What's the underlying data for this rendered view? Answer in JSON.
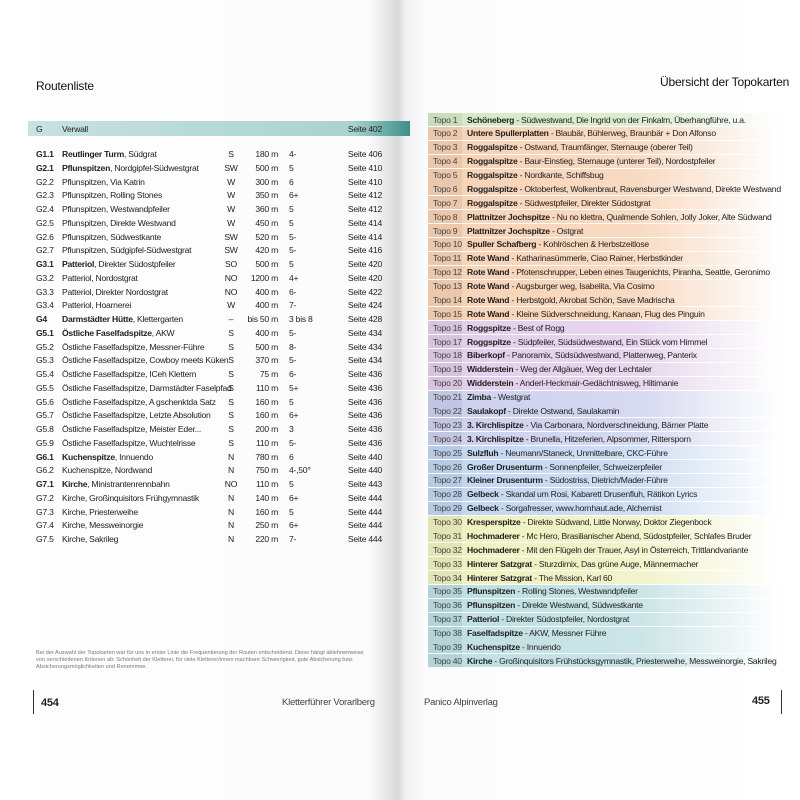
{
  "left": {
    "title": "Routenliste",
    "header": {
      "id": "G",
      "name": "Verwall",
      "page": "Seite 402"
    },
    "rows": [
      {
        "id": "G1.1",
        "strong": "Reutlinger Turm",
        "name": ", Südgrat",
        "dir": "S",
        "length": "180 m",
        "grade": "4-",
        "page": "Seite 406"
      },
      {
        "id": "G2.1",
        "strong": "Pflunspitzen",
        "name": ", Nordgipfel-Südwestgrat",
        "dir": "SW",
        "length": "500 m",
        "grade": "5",
        "page": "Seite 410"
      },
      {
        "id": "G2.2",
        "name": "Pflunspitzen, Via Katrin",
        "dir": "W",
        "length": "300 m",
        "grade": "6",
        "page": "Seite 410"
      },
      {
        "id": "G2.3",
        "name": "Pflunspitzen, Rolling Stones",
        "dir": "W",
        "length": "350 m",
        "grade": "6+",
        "page": "Seite 412"
      },
      {
        "id": "G2.4",
        "name": "Pflunspitzen, Westwandpfeiler",
        "dir": "W",
        "length": "360 m",
        "grade": "5",
        "page": "Seite 412"
      },
      {
        "id": "G2.5",
        "name": "Pflunspitzen, Direkte Westwand",
        "dir": "W",
        "length": "450 m",
        "grade": "5",
        "page": "Seite 414"
      },
      {
        "id": "G2.6",
        "name": "Pflunspitzen, Südwestkante",
        "dir": "SW",
        "length": "520 m",
        "grade": "5-",
        "page": "Seite 414"
      },
      {
        "id": "G2.7",
        "name": "Pflunspitzen, Südgipfel-Südwestgrat",
        "dir": "SW",
        "length": "420 m",
        "grade": "5-",
        "page": "Seite 416"
      },
      {
        "id": "G3.1",
        "strong": "Patteriol",
        "name": ", Direkter Südostpfeiler",
        "dir": "SO",
        "length": "500 m",
        "grade": "5",
        "page": "Seite 420"
      },
      {
        "id": "G3.2",
        "name": "Patteriol, Nordostgrat",
        "dir": "NO",
        "length": "1200 m",
        "grade": "4+",
        "page": "Seite 420"
      },
      {
        "id": "G3.3",
        "name": "Patteriol, Direkter Nordostgrat",
        "dir": "NO",
        "length": "400 m",
        "grade": "6-",
        "page": "Seite 422"
      },
      {
        "id": "G3.4",
        "name": "Patteriol, Hoarnerei",
        "dir": "W",
        "length": "400 m",
        "grade": "7-",
        "page": "Seite 424"
      },
      {
        "id": "G4",
        "strong": "Darmstädter Hütte",
        "name": ", Klettergarten",
        "dir": "–",
        "length": "bis 50 m",
        "grade": "3 bis 8",
        "page": "Seite 428"
      },
      {
        "id": "G5.1",
        "strong": "Östliche Faselfadspitze",
        "name": ", AKW",
        "dir": "S",
        "length": "400 m",
        "grade": "5-",
        "page": "Seite 434"
      },
      {
        "id": "G5.2",
        "name": "Östliche Faselfadspitze, Messner-Führe",
        "dir": "S",
        "length": "500 m",
        "grade": "8-",
        "page": "Seite 434"
      },
      {
        "id": "G5.3",
        "name": "Östliche Faselfadspitze, Cowboy meets Küken",
        "dir": "S",
        "length": "370 m",
        "grade": "5-",
        "page": "Seite 434"
      },
      {
        "id": "G5.4",
        "name": "Östliche Faselfadspitze, ICeh Klettern",
        "dir": "S",
        "length": "75 m",
        "grade": "6-",
        "page": "Seite 436"
      },
      {
        "id": "G5.5",
        "name": "Östliche Faselfadspitze, Darmstädter Faselpfad",
        "dir": "S",
        "length": "110 m",
        "grade": "5+",
        "page": "Seite 436"
      },
      {
        "id": "G5.6",
        "name": "Östliche Faselfadspitze, A gschenktda Satz",
        "dir": "S",
        "length": "160 m",
        "grade": "5",
        "page": "Seite 436"
      },
      {
        "id": "G5.7",
        "name": "Östliche Faselfadspitze, Letzte Absolution",
        "dir": "S",
        "length": "160 m",
        "grade": "6+",
        "page": "Seite 436"
      },
      {
        "id": "G5.8",
        "name": "Östliche Faselfadspitze, Meister Eder...",
        "dir": "S",
        "length": "200 m",
        "grade": "3",
        "page": "Seite 436"
      },
      {
        "id": "G5.9",
        "name": "Östliche Faselfadspitze, Wuchtelrisse",
        "dir": "S",
        "length": "110 m",
        "grade": "5-",
        "page": "Seite 436"
      },
      {
        "id": "G6.1",
        "strong": "Kuchenspitze",
        "name": ", Innuendo",
        "dir": "N",
        "length": "780 m",
        "grade": "6",
        "page": "Seite 440"
      },
      {
        "id": "G6.2",
        "name": "Kuchenspitze, Nordwand",
        "dir": "N",
        "length": "750 m",
        "grade": "4-,50°",
        "page": "Seite 440"
      },
      {
        "id": "G7.1",
        "strong": "Kirche",
        "name": ", Ministrantenrennbahn",
        "dir": "NO",
        "length": "110 m",
        "grade": "5",
        "page": "Seite 443"
      },
      {
        "id": "G7.2",
        "name": "Kirche, Großinquisitors Frühgymnastik",
        "dir": "N",
        "length": "140 m",
        "grade": "6+",
        "page": "Seite 444"
      },
      {
        "id": "G7.3",
        "name": "Kirche, Priesterweihe",
        "dir": "N",
        "length": "160 m",
        "grade": "5",
        "page": "Seite 444"
      },
      {
        "id": "G7.4",
        "name": "Kirche, Messweinorgie",
        "dir": "N",
        "length": "250 m",
        "grade": "6+",
        "page": "Seite 444"
      },
      {
        "id": "G7.5",
        "name": "Kirche, Sakrileg",
        "dir": "N",
        "length": "220 m",
        "grade": "7-",
        "page": "Seite 444"
      }
    ],
    "note": "Bei der Auswahl der Topokarten war für uns in erster Linie die Frequentierung der Routen entscheidend. Diese hängt ablehnenweise von verschiedenen Kriterien ab: Schönheit der Kletterei, für viele Kletterer/innen machbare Schwierigkeit, gute Absicherung bzw. Absicherungsmöglichkeiten und Renommee.",
    "footer": {
      "page": "454",
      "book": "Kletterführer Vorarlberg"
    }
  },
  "right": {
    "title": "Übersicht der Topokarten",
    "groups": [
      {
        "color": "#d4e8c6",
        "rows": [
          {
            "label": "Topo 1",
            "peak": "Schöneberg",
            "routes": "- Südwestwand, Die Ingrid von der Finkalm, Überhangführe, u.a."
          }
        ]
      },
      {
        "color": "#f7d2b4",
        "rows": [
          {
            "label": "Topo 2",
            "peak": "Untere Spullerplatten",
            "routes": "- Blaubär, Bühlerweg, Braunbär + Don Alfonso"
          },
          {
            "label": "Topo 3",
            "peak": "Roggalspitze",
            "routes": "- Ostwand, Traumfänger, Sternauge (oberer Teil)"
          },
          {
            "label": "Topo 4",
            "peak": "Roggalspitze",
            "routes": "- Baur-Einstieg, Sternauge (unterer Teil), Nordostpfeiler"
          },
          {
            "label": "Topo 5",
            "peak": "Roggalspitze",
            "routes": "- Nordkante, Schiffsbug"
          },
          {
            "label": "Topo 6",
            "peak": "Roggalspitze",
            "routes": "- Oktoberfest, Wolkenbraut, Ravensburger Westwand, Direkte Westwand"
          },
          {
            "label": "Topo 7",
            "peak": "Roggalspitze",
            "routes": "- Südwestpfeiler, Direkter Südostgrat"
          },
          {
            "label": "Topo 8",
            "peak": "Plattnitzer Jochspitze",
            "routes": "- Nu no klettra, Qualmende Sohlen, Jolly Joker, Alte Südwand"
          },
          {
            "label": "Topo 9",
            "peak": "Plattnitzer Jochspitze",
            "routes": "- Ostgrat"
          },
          {
            "label": "Topo 10",
            "peak": "Spuller Schafberg",
            "routes": "- Kohlröschen & Herbstzeitlose"
          },
          {
            "label": "Topo 11",
            "peak": "Rote Wand",
            "routes": "- Katharinasümmerle, Ciao Rainer, Herbstkinder"
          },
          {
            "label": "Topo 12",
            "peak": "Rote Wand",
            "routes": "- Pfotenschrupper, Leben eines Taugenichts, Piranha, Seattle, Geronimo"
          },
          {
            "label": "Topo 13",
            "peak": "Rote Wand",
            "routes": "- Augsburger weg, Isabelita, Via Cosimo"
          },
          {
            "label": "Topo 14",
            "peak": "Rote Wand",
            "routes": "- Herbstgold, Akrobat Schön, Save Madrischa"
          },
          {
            "label": "Topo 15",
            "peak": "Rote Wand",
            "routes": "- Kleine Südverschneidung, Kanaan, Flug des Pinguin"
          }
        ]
      },
      {
        "color": "#e2cdea",
        "rows": [
          {
            "label": "Topo 16",
            "peak": "Roggspitze",
            "routes": "- Best of Rogg"
          },
          {
            "label": "Topo 17",
            "peak": "Roggspitze",
            "routes": "- Südpfeiler, Südsüdwestwand, Ein Stück vom Himmel"
          },
          {
            "label": "Topo 18",
            "peak": "Biberkopf",
            "routes": "- Panoramix, Südsüdwestwand, Plattenweg, Panterix"
          },
          {
            "label": "Topo 19",
            "peak": "Widderstein",
            "routes": "- Weg der Allgäuer, Weg der Lechtaler"
          },
          {
            "label": "Topo 20",
            "peak": "Widderstein",
            "routes": "- Anderl-Heckmair-Gedächtnisweg, Hiltimanie"
          }
        ]
      },
      {
        "color": "#cdd0ee",
        "rows": [
          {
            "label": "Topo 21",
            "peak": "Zimba",
            "routes": "- Westgrat"
          },
          {
            "label": "Topo 22",
            "peak": "Saulakopf",
            "routes": "- Direkte Ostwand, Saulakamin"
          },
          {
            "label": "Topo 23",
            "peak": "3. Kirchlispitze",
            "routes": "- Via Carbonara, Nordverschneidung, Bärner Platte"
          },
          {
            "label": "Topo 24",
            "peak": "3. Kirchlispitze",
            "routes": "- Brunella, Hitzeferien, Alpsommer, Rittersporn"
          }
        ]
      },
      {
        "color": "#c2d6f0",
        "rows": [
          {
            "label": "Topo 25",
            "peak": "Sulzfluh",
            "routes": "- Neumann/Staneck, Unmittelbare, CKC-Führe"
          },
          {
            "label": "Topo 26",
            "peak": "Großer Drusenturm",
            "routes": "- Sonnenpfeiler, Schweizerpfeiler"
          },
          {
            "label": "Topo 27",
            "peak": "Kleiner Drusenturm",
            "routes": "- Südostriss, Dietrich/Mader-Führe"
          },
          {
            "label": "Topo 28",
            "peak": "Gelbeck",
            "routes": "- Skandal um Rosi, Kabarett Drusenfluh, Rätikon Lyrics"
          },
          {
            "label": "Topo 29",
            "peak": "Gelbeck",
            "routes": "- Sorgafresser, www.hornhaut.ade, Alchemist"
          }
        ]
      },
      {
        "color": "#eef1bd",
        "rows": [
          {
            "label": "Topo 30",
            "peak": "Kresperspitze",
            "routes": "- Direkte Südwand, Little Norway, Doktor Ziegenbock"
          },
          {
            "label": "Topo 31",
            "peak": "Hochmaderer",
            "routes": "- Mc Hero, Brasilianischer Abend, Südostpfeiler, Schlafes Bruder"
          },
          {
            "label": "Topo 32",
            "peak": "Hochmaderer",
            "routes": "- Mit den Flügeln der Trauer, Asyl in Österreich, Trittlandvariante"
          },
          {
            "label": "Topo 33",
            "peak": "Hinterer Satzgrat",
            "routes": "- Sturzdirnix, Das grüne Auge, Männermacher"
          },
          {
            "label": "Topo 34",
            "peak": "Hinterer Satzgrat",
            "routes": "- The Mission, Karl 60"
          }
        ]
      },
      {
        "color": "#bedfe2",
        "rows": [
          {
            "label": "Topo 35",
            "peak": "Pflunspitzen",
            "routes": "- Rolling Stones, Westwandpfeiler"
          },
          {
            "label": "Topo 36",
            "peak": "Pflunspitzen",
            "routes": "- Direkte Westwand, Südwestkante"
          },
          {
            "label": "Topo 37",
            "peak": "Patteriol",
            "routes": "- Direkter Südostpfeiler, Nordostgrat"
          },
          {
            "label": "Topo 38",
            "peak": "Faselfadspitze",
            "routes": "- AKW, Messner Führe"
          },
          {
            "label": "Topo 39",
            "peak": "Kuchenspitze",
            "routes": "- Innuendo"
          },
          {
            "label": "Topo 40",
            "peak": "Kirche",
            "routes": "- Großinquisitors Frühstücksgymnastik, Priesterweihe, Messweinorgie, Sakrileg"
          }
        ]
      }
    ],
    "footer": {
      "publisher": "Panico Alpinverlag",
      "page": "455"
    }
  }
}
